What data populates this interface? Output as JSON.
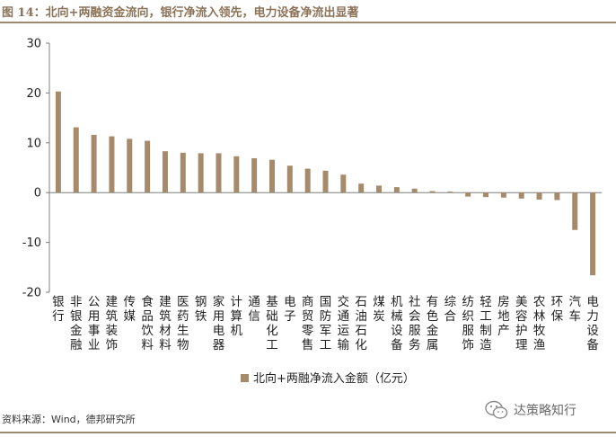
{
  "title": "图 14：北向+两融资金流向，银行净流入领先，电力设备净流出显著",
  "source": "资料来源：Wind，德邦研究所",
  "watermark": "达策略知行",
  "colors": {
    "bar": "#a58b6b",
    "title": "#8c7358",
    "rule": "#9c8a73",
    "axis": "#7f7f7f"
  },
  "chart_data": {
    "type": "bar",
    "legend_position": "bottom",
    "grid": false,
    "ylim": [
      -20,
      30
    ],
    "yticks": [
      30,
      20,
      10,
      0,
      -10,
      -20
    ],
    "categories": [
      "银行",
      "非银金融",
      "公用事业",
      "建筑装饰",
      "传媒",
      "食品饮料",
      "建筑材料",
      "医药生物",
      "钢铁",
      "家用电器",
      "计算机",
      "通信",
      "基础化工",
      "电子",
      "商贸零售",
      "国防军工",
      "交通运输",
      "石油石化",
      "煤炭",
      "机械设备",
      "社会服务",
      "有色金属",
      "综合",
      "纺织服饰",
      "轻工制造",
      "房地产",
      "美容护理",
      "农林牧渔",
      "环保",
      "汽车",
      "电力设备"
    ],
    "series": [
      {
        "name": "北向+两融净流入金额（亿元）",
        "values": [
          20.3,
          13.1,
          11.6,
          11.3,
          10.8,
          10.4,
          8.3,
          8.0,
          7.9,
          7.9,
          7.3,
          6.9,
          6.6,
          5.4,
          4.8,
          4.4,
          3.6,
          1.8,
          1.4,
          1.1,
          0.8,
          0.3,
          0.2,
          -0.8,
          -0.9,
          -1.0,
          -1.2,
          -1.4,
          -1.5,
          -7.5,
          -16.6
        ]
      }
    ]
  }
}
